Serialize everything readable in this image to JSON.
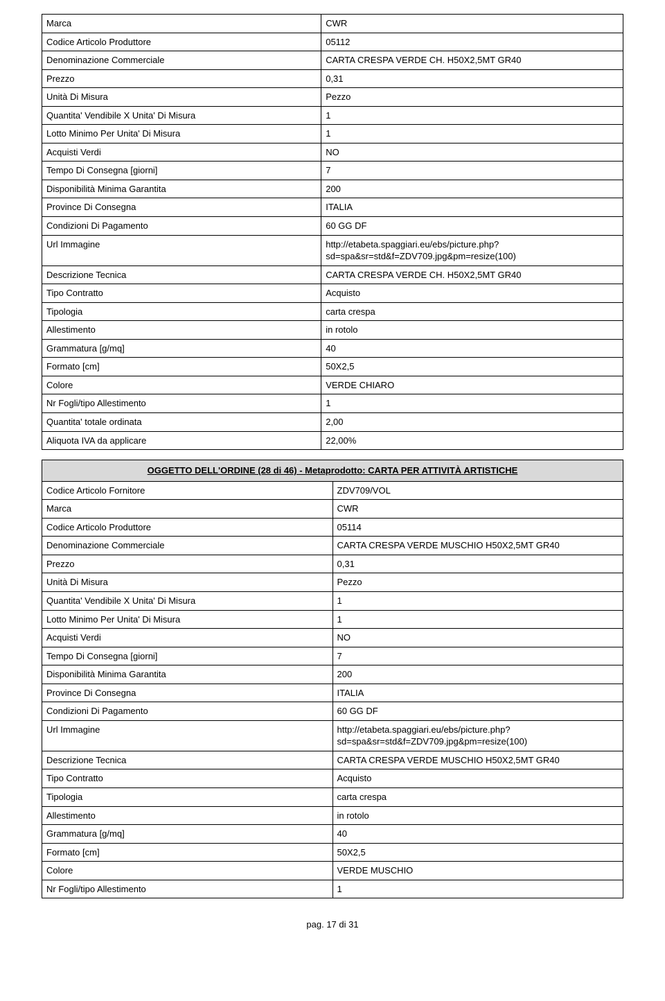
{
  "tables": [
    {
      "rows": [
        {
          "label": "Marca",
          "value": "CWR"
        },
        {
          "label": "Codice Articolo Produttore",
          "value": "05112"
        },
        {
          "label": "Denominazione Commerciale",
          "value": "CARTA CRESPA VERDE CH. H50X2,5MT GR40"
        },
        {
          "label": "Prezzo",
          "value": "0,31"
        },
        {
          "label": "Unità Di Misura",
          "value": "Pezzo"
        },
        {
          "label": "Quantita' Vendibile X Unita' Di Misura",
          "value": "1"
        },
        {
          "label": "Lotto Minimo Per Unita' Di Misura",
          "value": "1"
        },
        {
          "label": "Acquisti Verdi",
          "value": "NO"
        },
        {
          "label": "Tempo Di Consegna [giorni]",
          "value": "7"
        },
        {
          "label": "Disponibilità Minima Garantita",
          "value": "200"
        },
        {
          "label": "Province Di Consegna",
          "value": "ITALIA"
        },
        {
          "label": "Condizioni Di Pagamento",
          "value": "60 GG DF"
        },
        {
          "label": "Url Immagine",
          "value": "http://etabeta.spaggiari.eu/ebs/picture.php?sd=spa&sr=std&f=ZDV709.jpg&pm=resize(100)"
        },
        {
          "label": "Descrizione Tecnica",
          "value": "CARTA CRESPA VERDE CH. H50X2,5MT GR40"
        },
        {
          "label": "Tipo Contratto",
          "value": "Acquisto"
        },
        {
          "label": "Tipologia",
          "value": "carta crespa"
        },
        {
          "label": "Allestimento",
          "value": "in rotolo"
        },
        {
          "label": "Grammatura [g/mq]",
          "value": "40"
        },
        {
          "label": "Formato [cm]",
          "value": "50X2,5"
        },
        {
          "label": "Colore",
          "value": "VERDE CHIARO"
        },
        {
          "label": "Nr Fogli/tipo Allestimento",
          "value": "1"
        },
        {
          "label": "Quantita' totale ordinata",
          "value": "2,00"
        },
        {
          "label": "Aliquota IVA da applicare",
          "value": "22,00%"
        }
      ]
    },
    {
      "header": "OGGETTO DELL'ORDINE (28 di 46) - Metaprodotto: CARTA PER ATTIVITÀ ARTISTICHE",
      "rows": [
        {
          "label": "Codice Articolo Fornitore",
          "value": "ZDV709/VOL"
        },
        {
          "label": "Marca",
          "value": "CWR"
        },
        {
          "label": "Codice Articolo Produttore",
          "value": "05114"
        },
        {
          "label": "Denominazione Commerciale",
          "value": "CARTA CRESPA VERDE MUSCHIO H50X2,5MT GR40"
        },
        {
          "label": "Prezzo",
          "value": "0,31"
        },
        {
          "label": "Unità Di Misura",
          "value": "Pezzo"
        },
        {
          "label": "Quantita' Vendibile X Unita' Di Misura",
          "value": "1"
        },
        {
          "label": "Lotto Minimo Per Unita' Di Misura",
          "value": "1"
        },
        {
          "label": "Acquisti Verdi",
          "value": "NO"
        },
        {
          "label": "Tempo Di Consegna [giorni]",
          "value": "7"
        },
        {
          "label": "Disponibilità Minima Garantita",
          "value": "200"
        },
        {
          "label": "Province Di Consegna",
          "value": "ITALIA"
        },
        {
          "label": "Condizioni Di Pagamento",
          "value": "60 GG DF"
        },
        {
          "label": "Url Immagine",
          "value": "http://etabeta.spaggiari.eu/ebs/picture.php?sd=spa&sr=std&f=ZDV709.jpg&pm=resize(100)"
        },
        {
          "label": "Descrizione Tecnica",
          "value": "CARTA CRESPA VERDE MUSCHIO H50X2,5MT GR40"
        },
        {
          "label": "Tipo Contratto",
          "value": "Acquisto"
        },
        {
          "label": "Tipologia",
          "value": "carta crespa"
        },
        {
          "label": "Allestimento",
          "value": "in rotolo"
        },
        {
          "label": "Grammatura [g/mq]",
          "value": "40"
        },
        {
          "label": "Formato [cm]",
          "value": "50X2,5"
        },
        {
          "label": "Colore",
          "value": "VERDE MUSCHIO"
        },
        {
          "label": "Nr Fogli/tipo Allestimento",
          "value": "1"
        }
      ]
    }
  ],
  "footer": "pag. 17 di 31"
}
